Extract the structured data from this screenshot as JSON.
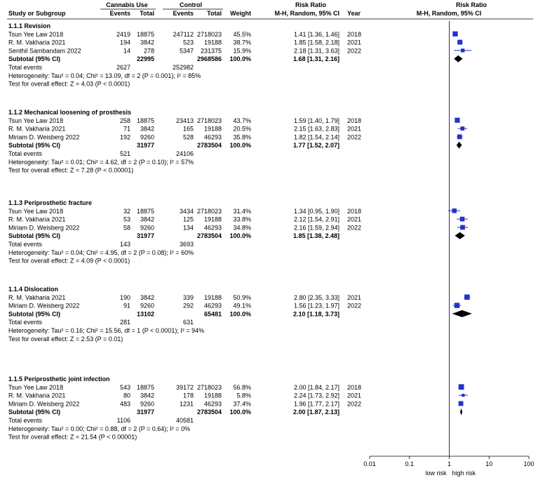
{
  "chart_data": {
    "type": "forest",
    "headers": {
      "group1": "Cannabis Use",
      "group2": "Control",
      "risk_ratio": "Risk Ratio",
      "risk_ratio_plot": "Risk Ratio",
      "study": "Study or Subgroup",
      "events1": "Events",
      "total1": "Total",
      "events2": "Events",
      "total2": "Total",
      "weight": "Weight",
      "method": "M-H, Random, 95% CI",
      "year": "Year",
      "method_plot": "M-H, Random, 95% CI"
    },
    "subgroups": [
      {
        "title": "1.1.1 Revision",
        "studies": [
          {
            "name": "Tsun Yee Law 2018",
            "events1": "2419",
            "total1": "18875",
            "events2": "247112",
            "total2": "2718023",
            "weight": "45.5%",
            "ci_text": "1.41 [1.36, 1.46]",
            "year": "2018",
            "rr": 1.41,
            "lo": 1.36,
            "hi": 1.46
          },
          {
            "name": "R. M. Vakharia 2021",
            "events1": "194",
            "total1": "3842",
            "events2": "523",
            "total2": "19188",
            "weight": "38.7%",
            "ci_text": "1.85 [1.58, 2.18]",
            "year": "2021",
            "rr": 1.85,
            "lo": 1.58,
            "hi": 2.18
          },
          {
            "name": "Senthil Sambandam 2022",
            "events1": "14",
            "total1": "278",
            "events2": "5347",
            "total2": "231375",
            "weight": "15.9%",
            "ci_text": "2.18 [1.31, 3.63]",
            "year": "2022",
            "rr": 2.18,
            "lo": 1.31,
            "hi": 3.63
          }
        ],
        "subtotal": {
          "label": "Subtotal (95% CI)",
          "total1": "22995",
          "total2": "2968586",
          "weight": "100.0%",
          "ci_text": "1.68 [1.31, 2.16]",
          "rr": 1.68,
          "lo": 1.31,
          "hi": 2.16
        },
        "total_events": {
          "label": "Total events",
          "events1": "2627",
          "events2": "252982"
        },
        "heterogeneity": "Heterogeneity: Tau² = 0.04; Chi² = 13.09, df = 2 (P = 0.001); I² = 85%",
        "overall": "Test for overall effect: Z = 4.03 (P < 0.0001)"
      },
      {
        "title": "1.1.2 Mechanical loosening of prosthesis",
        "studies": [
          {
            "name": "Tsun Yee Law 2018",
            "events1": "258",
            "total1": "18875",
            "events2": "23413",
            "total2": "2718023",
            "weight": "43.7%",
            "ci_text": "1.59 [1.40, 1.79]",
            "year": "2018",
            "rr": 1.59,
            "lo": 1.4,
            "hi": 1.79
          },
          {
            "name": "R. M. Vakharia 2021",
            "events1": "71",
            "total1": "3842",
            "events2": "165",
            "total2": "19188",
            "weight": "20.5%",
            "ci_text": "2.15 [1.63, 2.83]",
            "year": "2021",
            "rr": 2.15,
            "lo": 1.63,
            "hi": 2.83
          },
          {
            "name": "Miriam D. Weisberg 2022",
            "events1": "192",
            "total1": "9260",
            "events2": "528",
            "total2": "46293",
            "weight": "35.8%",
            "ci_text": "1.82 [1.54, 2.14]",
            "year": "2022",
            "rr": 1.82,
            "lo": 1.54,
            "hi": 2.14
          }
        ],
        "subtotal": {
          "label": "Subtotal (95% CI)",
          "total1": "31977",
          "total2": "2783504",
          "weight": "100.0%",
          "ci_text": "1.77 [1.52, 2.07]",
          "rr": 1.77,
          "lo": 1.52,
          "hi": 2.07
        },
        "total_events": {
          "label": "Total events",
          "events1": "521",
          "events2": "24106"
        },
        "heterogeneity": "Heterogeneity: Tau² = 0.01; Chi² = 4.62, df = 2 (P = 0.10); I² = 57%",
        "overall": "Test for overall effect: Z = 7.28 (P < 0.00001)"
      },
      {
        "title": "1.1.3 Periprosthetic fracture",
        "studies": [
          {
            "name": "Tsun Yee Law 2018",
            "events1": "32",
            "total1": "18875",
            "events2": "3434",
            "total2": "2718023",
            "weight": "31.4%",
            "ci_text": "1.34 [0.95, 1.90]",
            "year": "2018",
            "rr": 1.34,
            "lo": 0.95,
            "hi": 1.9
          },
          {
            "name": "R. M. Vakharia 2021",
            "events1": "53",
            "total1": "3842",
            "events2": "125",
            "total2": "19188",
            "weight": "33.8%",
            "ci_text": "2.12 [1.54, 2.91]",
            "year": "2021",
            "rr": 2.12,
            "lo": 1.54,
            "hi": 2.91
          },
          {
            "name": "Miriam D. Weisberg 2022",
            "events1": "58",
            "total1": "9260",
            "events2": "134",
            "total2": "46293",
            "weight": "34.8%",
            "ci_text": "2.16 [1.59, 2.94]",
            "year": "2022",
            "rr": 2.16,
            "lo": 1.59,
            "hi": 2.94
          }
        ],
        "subtotal": {
          "label": "Subtotal (95% CI)",
          "total1": "31977",
          "total2": "2783504",
          "weight": "100.0%",
          "ci_text": "1.85 [1.38, 2.48]",
          "rr": 1.85,
          "lo": 1.38,
          "hi": 2.48
        },
        "total_events": {
          "label": "Total events",
          "events1": "143",
          "events2": "3693"
        },
        "heterogeneity": "Heterogeneity: Tau² = 0.04; Chi² = 4.95, df = 2 (P = 0.08); I² = 60%",
        "overall": "Test for overall effect: Z = 4.09 (P < 0.0001)"
      },
      {
        "title": "1.1.4 Dislocation",
        "studies": [
          {
            "name": "R. M. Vakharia 2021",
            "events1": "190",
            "total1": "3842",
            "events2": "339",
            "total2": "19188",
            "weight": "50.9%",
            "ci_text": "2.80 [2.35, 3.33]",
            "year": "2021",
            "rr": 2.8,
            "lo": 2.35,
            "hi": 3.33
          },
          {
            "name": "Miriam D. Weisberg 2022",
            "events1": "91",
            "total1": "9260",
            "events2": "292",
            "total2": "46293",
            "weight": "49.1%",
            "ci_text": "1.56 [1.23, 1.97]",
            "year": "2022",
            "rr": 1.56,
            "lo": 1.23,
            "hi": 1.97
          }
        ],
        "subtotal": {
          "label": "Subtotal (95% CI)",
          "total1": "13102",
          "total2": "65481",
          "weight": "100.0%",
          "ci_text": "2.10 [1.18, 3.73]",
          "rr": 2.1,
          "lo": 1.18,
          "hi": 3.73
        },
        "total_events": {
          "label": "Total events",
          "events1": "281",
          "events2": "631"
        },
        "heterogeneity": "Heterogeneity: Tau² = 0.16; Chi² = 15.56, df = 1 (P < 0.0001); I² = 94%",
        "overall": "Test for overall effect: Z = 2.53 (P = 0.01)"
      },
      {
        "title": "1.1.5 Periprosthetic joint infection",
        "studies": [
          {
            "name": "Tsun Yee Law 2018",
            "events1": "543",
            "total1": "18875",
            "events2": "39172",
            "total2": "2718023",
            "weight": "56.8%",
            "ci_text": "2.00 [1.84, 2.17]",
            "year": "2018",
            "rr": 2.0,
            "lo": 1.84,
            "hi": 2.17
          },
          {
            "name": "R. M. Vakharia 2021",
            "events1": "80",
            "total1": "3842",
            "events2": "178",
            "total2": "19188",
            "weight": "5.8%",
            "ci_text": "2.24 [1.73, 2.92]",
            "year": "2021",
            "rr": 2.24,
            "lo": 1.73,
            "hi": 2.92
          },
          {
            "name": "Miriam D. Weisberg 2022",
            "events1": "483",
            "total1": "9260",
            "events2": "1231",
            "total2": "46293",
            "weight": "37.4%",
            "ci_text": "1.96 [1.77, 2.17]",
            "year": "2022",
            "rr": 1.96,
            "lo": 1.77,
            "hi": 2.17
          }
        ],
        "subtotal": {
          "label": "Subtotal (95% CI)",
          "total1": "31977",
          "total2": "2783504",
          "weight": "100.0%",
          "ci_text": "2.00 [1.87, 2.13]",
          "rr": 2.0,
          "lo": 1.87,
          "hi": 2.13
        },
        "total_events": {
          "label": "Total events",
          "events1": "1106",
          "events2": "40581"
        },
        "heterogeneity": "Heterogeneity: Tau² = 0.00; Chi² = 0.88, df = 2 (P = 0.64); I² = 0%",
        "overall": "Test for overall effect: Z = 21.54 (P < 0.00001)"
      }
    ],
    "axis": {
      "scale": "log",
      "xlim": [
        0.01,
        100
      ],
      "ticks": [
        0.01,
        0.1,
        1,
        10,
        100
      ],
      "tick_labels": [
        "0.01",
        "0.1",
        "1",
        "10",
        "100"
      ],
      "null_value": 1,
      "left_label": "low risk",
      "right_label": "high risk"
    },
    "colors": {
      "study_marker": "#2233cc",
      "ci_line": "#2233cc",
      "diamond": "#000000",
      "text": "#000000"
    }
  }
}
